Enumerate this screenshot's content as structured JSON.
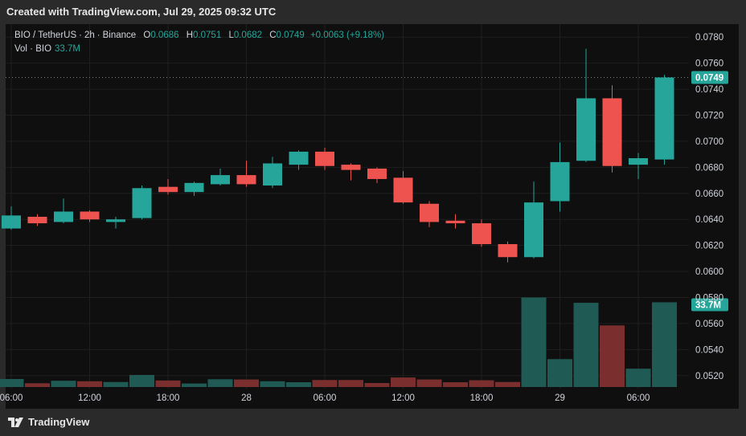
{
  "header": {
    "caption": "Created with TradingView.com, Jul 29, 2025 09:32 UTC"
  },
  "legend": {
    "symbol": "BIO / TetherUS",
    "interval": "2h",
    "exchange": "Binance",
    "open_key": "O",
    "open": "0.0686",
    "high_key": "H",
    "high": "0.0751",
    "low_key": "L",
    "low": "0.0682",
    "close_key": "C",
    "close": "0.0749",
    "change": "+0.0063 (+9.18%)",
    "volume_label": "Vol · BIO",
    "volume_value": "33.7M"
  },
  "footer": {
    "brand": "TradingView"
  },
  "colors": {
    "up": "#26a69a",
    "down": "#ef5350",
    "up_volume": "#1f5a54",
    "down_volume": "#7a2e2e",
    "grid": "#1f1f1f",
    "background": "#0f0f0f"
  },
  "chart_data": {
    "type": "candlestick",
    "title": "BIO / TetherUS · 2h · Binance",
    "y_axis": {
      "range": [
        0.051,
        0.079
      ],
      "ticks": [
        "0.0780",
        "0.0760",
        "0.0740",
        "0.0720",
        "0.0700",
        "0.0680",
        "0.0660",
        "0.0640",
        "0.0620",
        "0.0600",
        "0.0580",
        "0.0560",
        "0.0540",
        "0.0520"
      ]
    },
    "x_axis": {
      "ticks": [
        {
          "label": "06:00",
          "index": 0
        },
        {
          "label": "12:00",
          "index": 3
        },
        {
          "label": "18:00",
          "index": 6
        },
        {
          "label": "28",
          "index": 9
        },
        {
          "label": "06:00",
          "index": 12
        },
        {
          "label": "12:00",
          "index": 15
        },
        {
          "label": "18:00",
          "index": 18
        },
        {
          "label": "29",
          "index": 21
        },
        {
          "label": "06:00",
          "index": 24
        }
      ]
    },
    "current_price": {
      "value": 0.0749,
      "label": "0.0749"
    },
    "current_volume": {
      "value": 33.7,
      "label": "33.7M"
    },
    "volume_max": 38,
    "candles": [
      {
        "o": 0.0633,
        "h": 0.065,
        "l": 0.0632,
        "c": 0.0643,
        "v": 3.2
      },
      {
        "o": 0.0642,
        "h": 0.0644,
        "l": 0.0635,
        "c": 0.0637,
        "v": 1.5
      },
      {
        "o": 0.0638,
        "h": 0.0656,
        "l": 0.0637,
        "c": 0.0646,
        "v": 2.5
      },
      {
        "o": 0.0646,
        "h": 0.0647,
        "l": 0.0638,
        "c": 0.064,
        "v": 2.3
      },
      {
        "o": 0.0638,
        "h": 0.0642,
        "l": 0.0633,
        "c": 0.064,
        "v": 2.0
      },
      {
        "o": 0.0641,
        "h": 0.0666,
        "l": 0.064,
        "c": 0.0664,
        "v": 4.8
      },
      {
        "o": 0.0665,
        "h": 0.0671,
        "l": 0.0659,
        "c": 0.0661,
        "v": 2.6
      },
      {
        "o": 0.0661,
        "h": 0.0669,
        "l": 0.0658,
        "c": 0.0668,
        "v": 1.4
      },
      {
        "o": 0.0667,
        "h": 0.0679,
        "l": 0.0666,
        "c": 0.0674,
        "v": 3.1
      },
      {
        "o": 0.0674,
        "h": 0.0685,
        "l": 0.0665,
        "c": 0.0667,
        "v": 3.0
      },
      {
        "o": 0.0666,
        "h": 0.0688,
        "l": 0.0664,
        "c": 0.0683,
        "v": 2.3
      },
      {
        "o": 0.0682,
        "h": 0.0693,
        "l": 0.0678,
        "c": 0.0692,
        "v": 1.9
      },
      {
        "o": 0.0692,
        "h": 0.0695,
        "l": 0.0678,
        "c": 0.0681,
        "v": 2.8
      },
      {
        "o": 0.0682,
        "h": 0.0683,
        "l": 0.067,
        "c": 0.0678,
        "v": 2.8
      },
      {
        "o": 0.0679,
        "h": 0.068,
        "l": 0.0668,
        "c": 0.0671,
        "v": 1.6
      },
      {
        "o": 0.0672,
        "h": 0.0677,
        "l": 0.0652,
        "c": 0.0653,
        "v": 3.8
      },
      {
        "o": 0.0652,
        "h": 0.0654,
        "l": 0.0634,
        "c": 0.0638,
        "v": 3.0
      },
      {
        "o": 0.0639,
        "h": 0.0644,
        "l": 0.0633,
        "c": 0.0637,
        "v": 1.9
      },
      {
        "o": 0.0637,
        "h": 0.064,
        "l": 0.0619,
        "c": 0.0621,
        "v": 2.7
      },
      {
        "o": 0.0621,
        "h": 0.0623,
        "l": 0.0607,
        "c": 0.0611,
        "v": 2.0
      },
      {
        "o": 0.0611,
        "h": 0.0669,
        "l": 0.061,
        "c": 0.0653,
        "v": 35.6
      },
      {
        "o": 0.0654,
        "h": 0.0699,
        "l": 0.0646,
        "c": 0.0684,
        "v": 11.1
      },
      {
        "o": 0.0685,
        "h": 0.0771,
        "l": 0.0684,
        "c": 0.0733,
        "v": 33.5
      },
      {
        "o": 0.0733,
        "h": 0.0743,
        "l": 0.0676,
        "c": 0.0681,
        "v": 24.5
      },
      {
        "o": 0.0682,
        "h": 0.0691,
        "l": 0.0671,
        "c": 0.0687,
        "v": 7.3
      },
      {
        "o": 0.0686,
        "h": 0.0751,
        "l": 0.0682,
        "c": 0.0749,
        "v": 33.7
      }
    ]
  }
}
